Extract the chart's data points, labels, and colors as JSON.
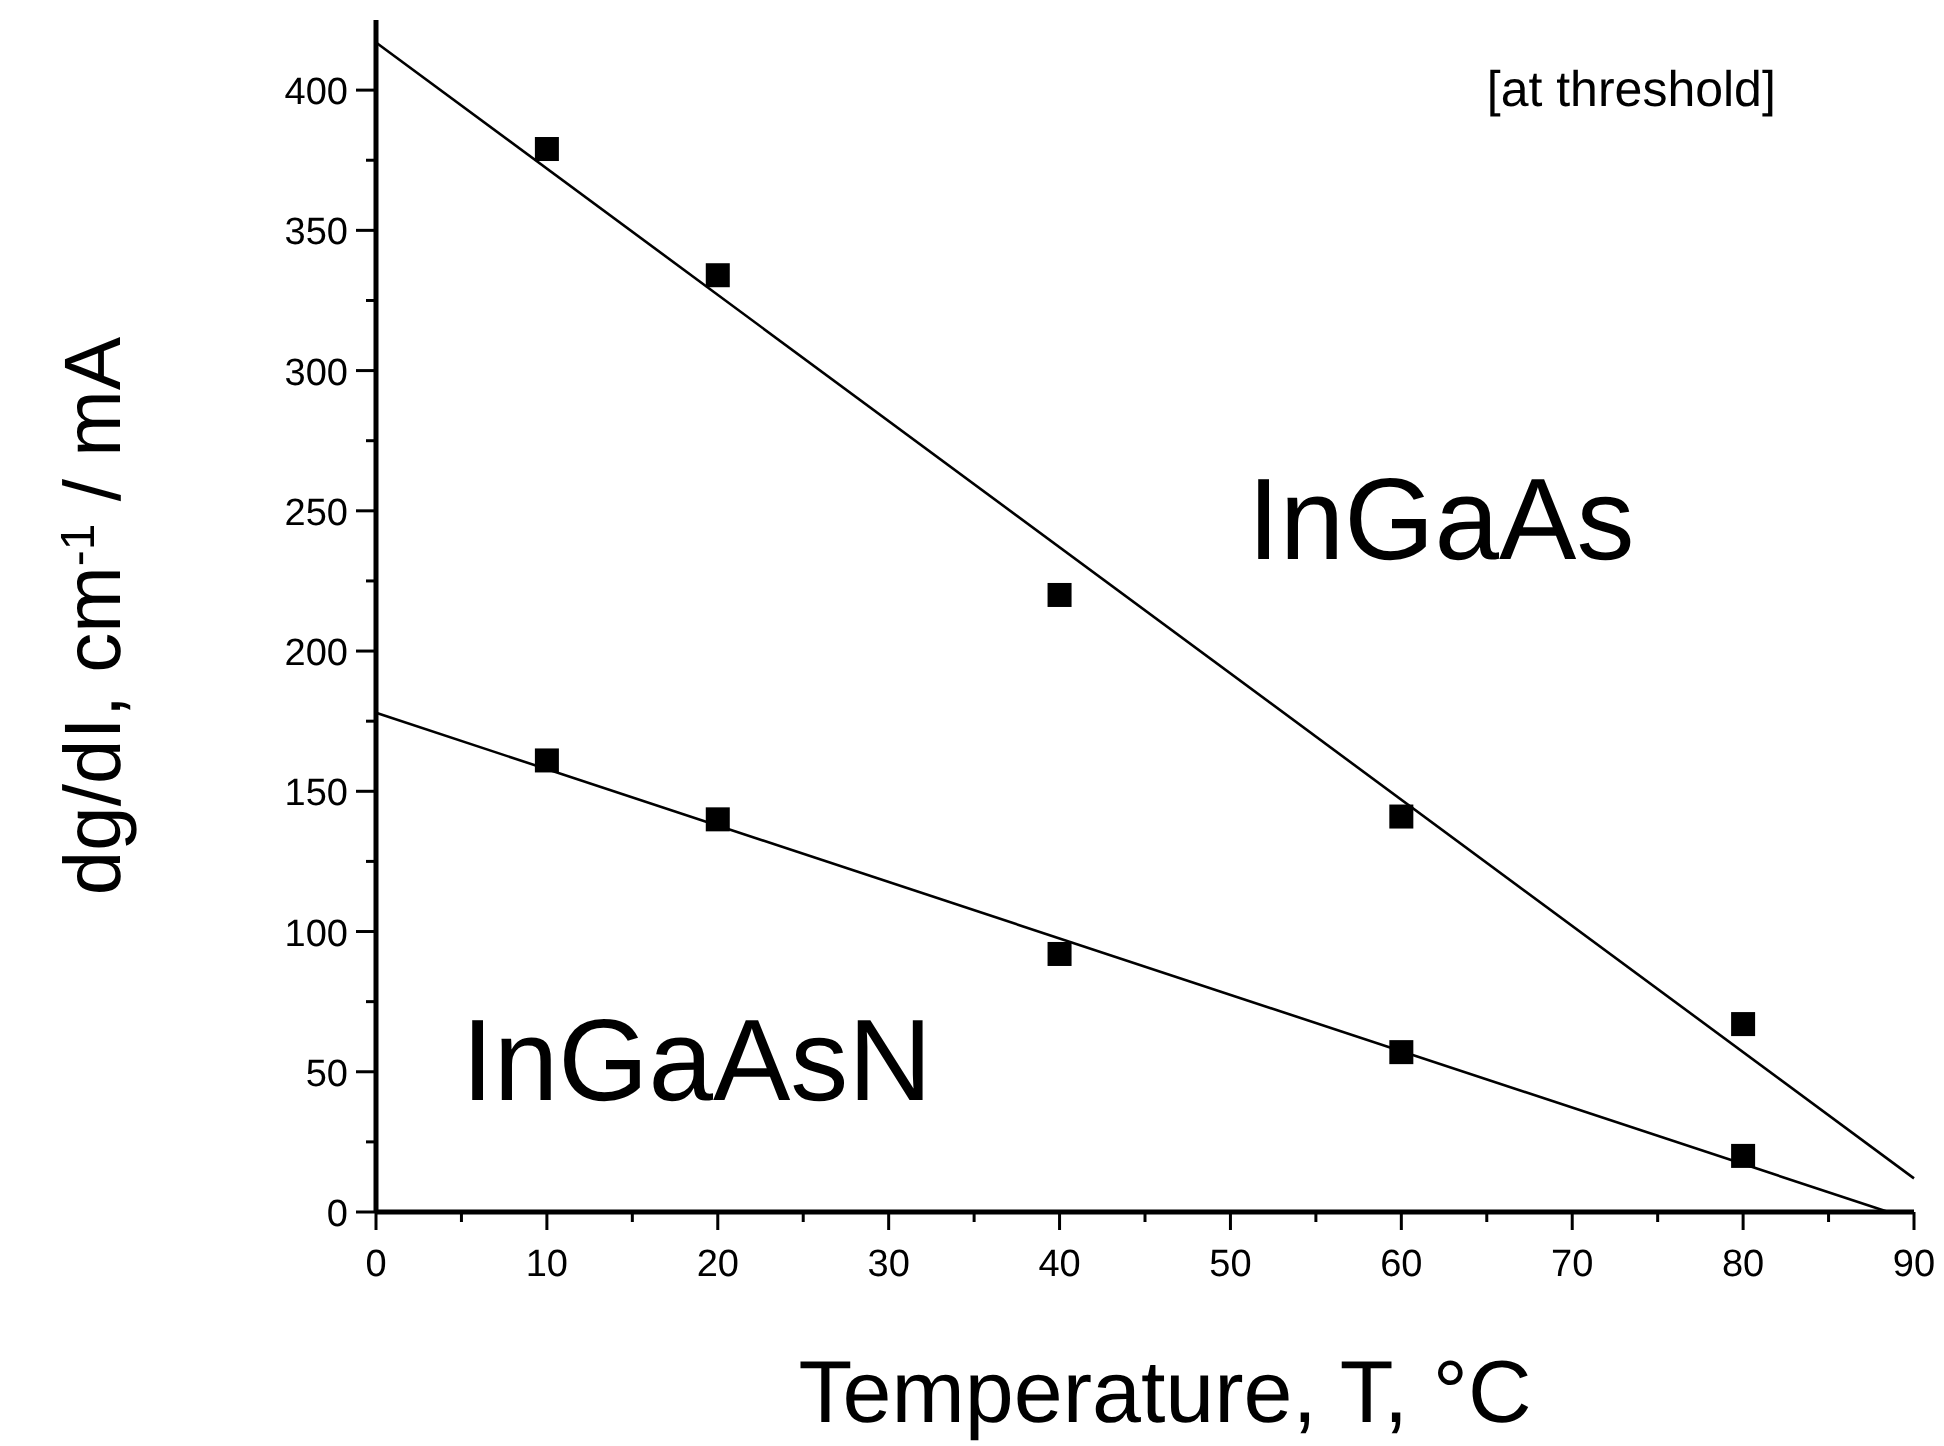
{
  "chart_data": {
    "type": "scatter",
    "xlabel": "Temperature, T, °C",
    "ylabel": "dg/dI, cm$^{-1}$ / mA",
    "annotations": [
      "[at threshold]"
    ],
    "xlim": [
      0,
      90
    ],
    "ylim": [
      0,
      425
    ],
    "xticks": [
      0,
      {
        "value": 5,
        "label": null
      },
      10,
      {
        "value": 15,
        "label": null
      },
      20,
      {
        "value": 25,
        "label": null
      },
      30,
      {
        "value": 35,
        "label": null
      },
      40,
      {
        "value": 45,
        "label": null
      },
      50,
      {
        "value": 55,
        "label": null
      },
      60,
      {
        "value": 65,
        "label": null
      },
      70,
      {
        "value": 75,
        "label": null
      },
      80,
      {
        "value": 85,
        "label": null
      },
      90
    ],
    "yticks": [
      0,
      {
        "value": 25,
        "label": null
      },
      50,
      {
        "value": 75,
        "label": null
      },
      100,
      {
        "value": 125,
        "label": null
      },
      150,
      {
        "value": 175,
        "label": null
      },
      200,
      {
        "value": 225,
        "label": null
      },
      250,
      {
        "value": 275,
        "label": null
      },
      300,
      {
        "value": 325,
        "label": null
      },
      350,
      {
        "value": 375,
        "label": null
      },
      400
    ],
    "grid": false,
    "marker": "square",
    "series": [
      {
        "name": "InGaAs",
        "color": "#000000",
        "x": [
          10,
          20,
          40,
          60,
          80
        ],
        "values": [
          379,
          334,
          220,
          141,
          67
        ]
      },
      {
        "name": "InGaAsN",
        "color": "#000000",
        "x": [
          10,
          20,
          40,
          60,
          80
        ],
        "values": [
          161,
          140,
          92,
          57,
          20
        ]
      },
      {
        "type": "line",
        "color": "#000000",
        "x": [
          0,
          90
        ],
        "values": [
          417,
          12
        ],
        "line_style": "solid",
        "marker": "none"
      },
      {
        "type": "line",
        "color": "#000000",
        "x": [
          0,
          88.5
        ],
        "values": [
          178,
          0
        ],
        "line_style": "solid",
        "marker": "none"
      }
    ]
  }
}
